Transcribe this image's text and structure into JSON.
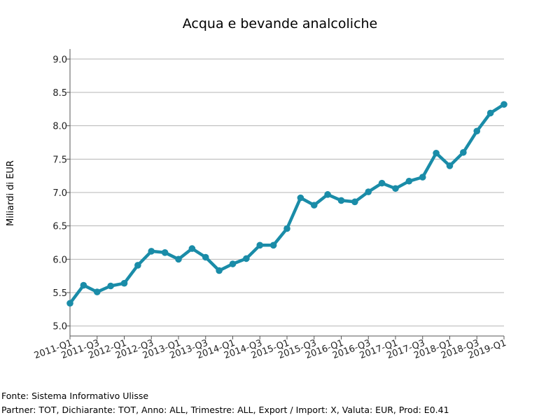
{
  "chart_data": {
    "type": "line",
    "title": "Acqua e bevande analcoliche",
    "xlabel": "",
    "ylabel": "Miliardi di EUR",
    "ylim": [
      4.85,
      9.15
    ],
    "yticks": [
      "5.0",
      "5.5",
      "6.0",
      "6.5",
      "7.0",
      "7.5",
      "8.0",
      "8.5",
      "9.0"
    ],
    "xtick_labels": [
      "2011-Q1",
      "2011-Q3",
      "2012-Q1",
      "2012-Q3",
      "2013-Q1",
      "2013-Q3",
      "2014-Q1",
      "2014-Q3",
      "2015-Q1",
      "2015-Q3",
      "2016-Q1",
      "2016-Q3",
      "2017-Q1",
      "2017-Q3",
      "2018-Q1",
      "2018-Q3",
      "2019-Q1"
    ],
    "grid": true,
    "line_color": "#1a8ca8",
    "series": [
      {
        "x": [
          "2011-Q1",
          "2011-Q2",
          "2011-Q3",
          "2011-Q4",
          "2012-Q1",
          "2012-Q2",
          "2012-Q3",
          "2012-Q4",
          "2013-Q1",
          "2013-Q2",
          "2013-Q3",
          "2013-Q4",
          "2014-Q1",
          "2014-Q2",
          "2014-Q3",
          "2014-Q4",
          "2015-Q1",
          "2015-Q2",
          "2015-Q3",
          "2015-Q4",
          "2016-Q1",
          "2016-Q2",
          "2016-Q3",
          "2016-Q4",
          "2017-Q1",
          "2017-Q2",
          "2017-Q3",
          "2017-Q4",
          "2018-Q1",
          "2018-Q2",
          "2018-Q3",
          "2018-Q4",
          "2019-Q1"
        ],
        "values": [
          5.34,
          5.61,
          5.51,
          5.6,
          5.64,
          5.91,
          6.12,
          6.1,
          6.0,
          6.16,
          6.03,
          5.83,
          5.93,
          6.01,
          6.21,
          6.21,
          6.46,
          6.92,
          6.81,
          6.97,
          6.88,
          6.86,
          7.01,
          7.14,
          7.06,
          7.17,
          7.23,
          7.59,
          7.4,
          7.6,
          7.92,
          8.19,
          8.32
        ]
      }
    ]
  },
  "footer": {
    "source": "Fonte: Sistema Informativo Ulisse",
    "params": "Partner: TOT, Dichiarante: TOT, Anno: ALL, Trimestre: ALL, Export / Import: X, Valuta: EUR, Prod: E0.41"
  }
}
